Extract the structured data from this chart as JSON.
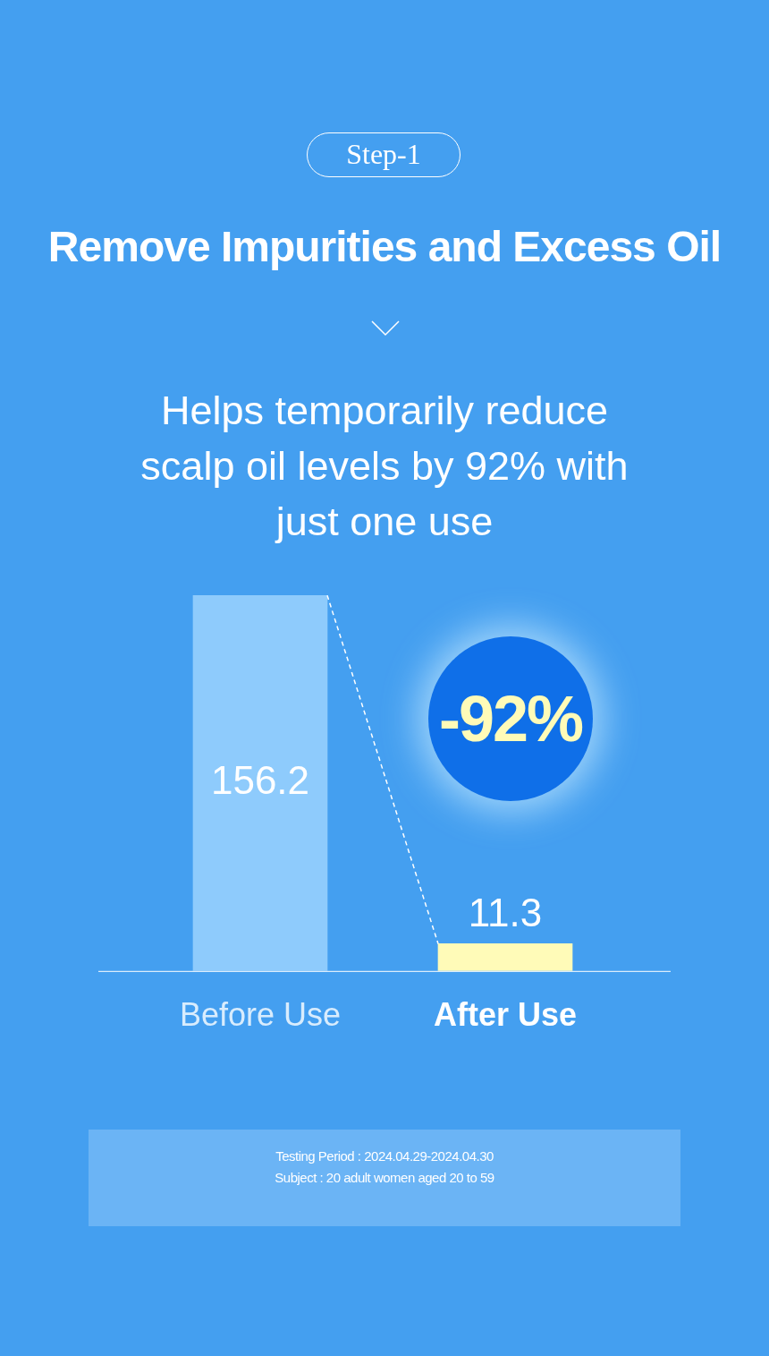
{
  "chart_data": {
    "type": "bar",
    "title": "Remove Impurities and Excess Oil",
    "subtitle": "Helps temporarily reduce scalp oil levels by 92% with just one use",
    "categories": [
      "Before Use",
      "After Use"
    ],
    "values": [
      156.2,
      11.3
    ],
    "colors": [
      "#8ecbfc",
      "#fffbb8"
    ],
    "data_labels": true,
    "annotations": [
      "Step-1",
      "-92%",
      "Testing Period : 2024.04.29-2024.04.30",
      "Subject : 20 adult women aged 20 to 59"
    ]
  }
}
